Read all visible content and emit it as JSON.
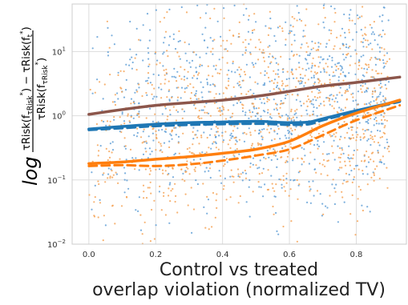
{
  "chart_data": {
    "type": "scatter",
    "title": "",
    "xlabel_line1": "Control vs treated",
    "xlabel_line2": "overlap violation (normalized TV)",
    "xlim": [
      -0.05,
      0.95
    ],
    "ylim": [
      0.01,
      55
    ],
    "yscale": "log",
    "grid": true,
    "legend": "none",
    "x_ticks": [
      {
        "value": 0.0,
        "label": "0.0"
      },
      {
        "value": 0.2,
        "label": "0.2"
      },
      {
        "value": 0.4,
        "label": "0.4"
      },
      {
        "value": 0.6,
        "label": "0.6"
      },
      {
        "value": 0.8,
        "label": "0.8"
      }
    ],
    "y_ticks": [
      {
        "value": 0.01,
        "base": "10",
        "exp": "−2"
      },
      {
        "value": 0.1,
        "base": "10",
        "exp": "−1"
      },
      {
        "value": 1,
        "base": "10",
        "exp": "0"
      },
      {
        "value": 10,
        "base": "10",
        "exp": "1"
      }
    ],
    "scatter_colors": {
      "blue": "#5a9bd5",
      "orange": "#f5a050"
    },
    "series": [
      {
        "color": "#8c564b",
        "style": "solid",
        "x": [
          0.0,
          0.1,
          0.2,
          0.3,
          0.4,
          0.5,
          0.6,
          0.7,
          0.8,
          0.93
        ],
        "y": [
          1.05,
          1.25,
          1.45,
          1.6,
          1.75,
          2.0,
          2.4,
          2.9,
          3.3,
          4.0
        ]
      },
      {
        "color": "#1f77b4",
        "style": "solid",
        "x": [
          0.0,
          0.1,
          0.2,
          0.3,
          0.4,
          0.5,
          0.55,
          0.6,
          0.66,
          0.7,
          0.8,
          0.93
        ],
        "y": [
          0.62,
          0.68,
          0.74,
          0.78,
          0.8,
          0.82,
          0.8,
          0.78,
          0.8,
          0.9,
          1.2,
          1.7
        ]
      },
      {
        "color": "#1f77b4",
        "style": "dashed",
        "x": [
          0.0,
          0.1,
          0.2,
          0.3,
          0.4,
          0.5,
          0.55,
          0.6,
          0.66,
          0.7,
          0.8,
          0.93
        ],
        "y": [
          0.6,
          0.64,
          0.69,
          0.72,
          0.74,
          0.75,
          0.74,
          0.72,
          0.74,
          0.85,
          1.15,
          1.65
        ]
      },
      {
        "color": "#ff7f0e",
        "style": "solid",
        "x": [
          0.0,
          0.1,
          0.2,
          0.3,
          0.4,
          0.5,
          0.6,
          0.7,
          0.8,
          0.93
        ],
        "y": [
          0.18,
          0.19,
          0.21,
          0.23,
          0.26,
          0.3,
          0.4,
          0.7,
          1.1,
          1.75
        ]
      },
      {
        "color": "#ff7f0e",
        "style": "dashed",
        "x": [
          0.0,
          0.1,
          0.2,
          0.3,
          0.4,
          0.5,
          0.6,
          0.7,
          0.8,
          0.93
        ],
        "y": [
          0.165,
          0.17,
          0.165,
          0.175,
          0.2,
          0.24,
          0.3,
          0.5,
          0.85,
          1.45
        ]
      }
    ]
  }
}
